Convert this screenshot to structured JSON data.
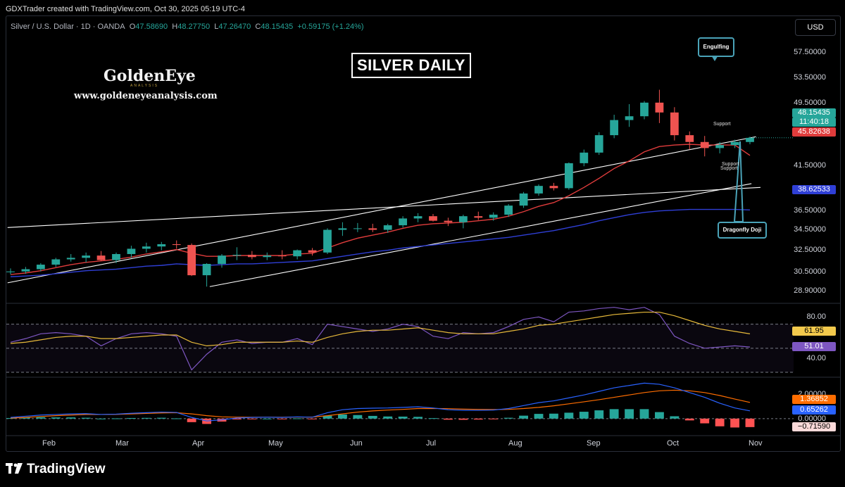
{
  "header": {
    "credit": "GDXTrader created with TradingView.com, Oct 30, 2025 05:19 UTC-4"
  },
  "legend": {
    "symbol": "Silver / U.S. Dollar · 1D · OANDA",
    "o_label": "O",
    "o": "47.58690",
    "h_label": "H",
    "h": "48.27750",
    "l_label": "L",
    "l": "47.26470",
    "c_label": "C",
    "c": "48.15435",
    "change": "+0.59175 (+1.24%)"
  },
  "currency": "USD",
  "annotations": {
    "title": "SILVER DAILY",
    "brand": "GoldenEye",
    "brand_sub": "ANALYSIS",
    "website": "www.goldeneyeanalysis.com",
    "engulfing": "Engulfing",
    "dragonfly": "Dragonfly Doji",
    "support1": "Support",
    "support2": "Support",
    "support3": "Support"
  },
  "price_axis": [
    "57.50000",
    "53.50000",
    "49.50000",
    "41.50000",
    "36.50000",
    "34.50000",
    "32.50000",
    "30.50000",
    "28.90000"
  ],
  "price_badges": {
    "last": "48.15435",
    "countdown": "11:40:18",
    "ema_fast": "45.82638",
    "ema_slow": "38.62533"
  },
  "rsi_axis": [
    "80.00",
    "40.00"
  ],
  "rsi_badges": {
    "ma": "61.95",
    "rsi": "51.01"
  },
  "macd_axis": [
    "2.00000",
    "0.00000"
  ],
  "macd_badges": {
    "signal": "1.36852",
    "macd": "0.65262",
    "hist": "−0.71590"
  },
  "time_axis": [
    "Feb",
    "Mar",
    "Apr",
    "May",
    "Jun",
    "Jul",
    "Aug",
    "Sep",
    "Oct",
    "Nov"
  ],
  "footer": {
    "brand": "TradingView"
  },
  "colors": {
    "up": "#26a69a",
    "down": "#ef5350",
    "ema_fast": "#e03c3c",
    "ema_slow": "#2f3fd6",
    "rsi": "#7e57c2",
    "rsi_ma": "#e6b93a",
    "macd": "#2962ff",
    "signal": "#ff6d00",
    "callout": "#4aa3b8"
  },
  "chart_data": [
    {
      "type": "candlestick",
      "title": "SILVER DAILY",
      "symbol": "Silver / U.S. Dollar",
      "interval": "1D",
      "ylim": [
        27.5,
        60.5
      ],
      "x": [
        "Jan 14",
        "Jan 21",
        "Jan 28",
        "Feb 4",
        "Feb 11",
        "Feb 18",
        "Feb 25",
        "Mar 4",
        "Mar 11",
        "Mar 18",
        "Mar 25",
        "Apr 1",
        "Apr 4",
        "Apr 8",
        "Apr 15",
        "Apr 22",
        "Apr 29",
        "May 6",
        "May 13",
        "May 20",
        "May 27",
        "Jun 3",
        "Jun 10",
        "Jun 17",
        "Jun 24",
        "Jul 1",
        "Jul 8",
        "Jul 15",
        "Jul 22",
        "Jul 29",
        "Aug 5",
        "Aug 12",
        "Aug 19",
        "Aug 26",
        "Sep 2",
        "Sep 9",
        "Sep 16",
        "Sep 23",
        "Sep 30",
        "Oct 7",
        "Oct 10",
        "Oct 14",
        "Oct 16",
        "Oct 17",
        "Oct 21",
        "Oct 23",
        "Oct 27",
        "Oct 28",
        "Oct 29",
        "Oct 30"
      ],
      "open": [
        30.4,
        30.5,
        30.8,
        31.4,
        32.1,
        32.3,
        32.6,
        32.0,
        32.8,
        33.5,
        33.8,
        34.1,
        34.0,
        30.0,
        31.5,
        32.6,
        32.7,
        32.4,
        32.6,
        32.5,
        33.3,
        33.0,
        36.0,
        36.2,
        36.2,
        36.0,
        36.6,
        37.5,
        37.8,
        37.2,
        37.0,
        37.8,
        37.6,
        38.0,
        39.2,
        40.8,
        41.8,
        41.5,
        44.8,
        46.2,
        48.5,
        50.5,
        51.0,
        52.8,
        51.5,
        48.5,
        47.6,
        46.8,
        47.2,
        47.6
      ],
      "high": [
        30.9,
        31.1,
        31.6,
        32.3,
        32.8,
        33.0,
        33.2,
        33.0,
        33.9,
        34.3,
        34.4,
        34.6,
        34.2,
        31.6,
        32.8,
        33.7,
        33.2,
        33.0,
        33.3,
        33.4,
        33.6,
        36.2,
        37.0,
        36.9,
        36.8,
        36.8,
        37.8,
        38.2,
        38.1,
        37.6,
        38.0,
        38.4,
        38.3,
        39.4,
        41.0,
        42.0,
        42.2,
        44.9,
        46.6,
        48.9,
        51.2,
        52.6,
        53.0,
        54.5,
        52.2,
        49.0,
        48.4,
        47.6,
        47.9,
        48.3
      ],
      "low": [
        30.1,
        30.2,
        30.5,
        31.1,
        31.8,
        31.7,
        31.9,
        31.6,
        32.3,
        33.0,
        33.3,
        33.5,
        29.9,
        28.5,
        31.0,
        32.0,
        32.1,
        32.0,
        32.1,
        32.1,
        32.6,
        32.8,
        35.2,
        35.7,
        35.7,
        35.6,
        36.3,
        37.0,
        37.1,
        36.5,
        36.2,
        37.3,
        37.2,
        37.7,
        38.9,
        40.5,
        41.2,
        41.3,
        44.4,
        45.9,
        48.1,
        49.6,
        50.6,
        50.1,
        47.8,
        46.6,
        45.7,
        46.1,
        46.8,
        47.3
      ],
      "close": [
        30.5,
        30.8,
        31.4,
        32.1,
        32.3,
        32.6,
        32.0,
        32.8,
        33.5,
        33.8,
        34.1,
        34.0,
        30.0,
        31.5,
        32.6,
        32.7,
        32.4,
        32.6,
        32.5,
        33.3,
        33.0,
        36.0,
        36.2,
        36.2,
        36.0,
        36.6,
        37.5,
        37.8,
        37.2,
        37.0,
        37.8,
        37.6,
        38.0,
        39.2,
        40.8,
        41.8,
        41.5,
        44.8,
        46.2,
        48.5,
        50.5,
        51.0,
        52.8,
        51.5,
        48.5,
        47.6,
        46.8,
        47.2,
        47.6,
        48.15
      ],
      "ema_fast": [
        30.1,
        30.3,
        30.6,
        31.0,
        31.4,
        31.7,
        31.9,
        32.1,
        32.4,
        32.8,
        33.1,
        33.4,
        32.9,
        32.5,
        32.5,
        32.6,
        32.6,
        32.6,
        32.6,
        32.8,
        32.9,
        33.6,
        34.3,
        34.9,
        35.3,
        35.7,
        36.2,
        36.6,
        36.8,
        36.9,
        37.0,
        37.2,
        37.4,
        37.8,
        38.4,
        39.1,
        39.6,
        40.5,
        41.6,
        42.8,
        44.1,
        45.1,
        46.3,
        47.0,
        47.2,
        47.3,
        47.2,
        47.2,
        47.2,
        45.83
      ],
      "ema_slow": [
        29.8,
        29.9,
        30.0,
        30.2,
        30.4,
        30.6,
        30.7,
        30.8,
        31.0,
        31.2,
        31.3,
        31.5,
        31.4,
        31.3,
        31.4,
        31.5,
        31.5,
        31.6,
        31.7,
        31.8,
        31.9,
        32.2,
        32.5,
        32.8,
        33.1,
        33.3,
        33.6,
        33.8,
        34.0,
        34.2,
        34.4,
        34.6,
        34.8,
        35.0,
        35.3,
        35.6,
        35.9,
        36.3,
        36.7,
        37.2,
        37.6,
        38.0,
        38.3,
        38.5,
        38.6,
        38.7,
        38.7,
        38.7,
        38.7,
        38.63
      ],
      "last": 48.15435
    },
    {
      "type": "line",
      "title": "RSI",
      "ylim": [
        30,
        85
      ],
      "series": [
        {
          "values": [
            55,
            58,
            62,
            63,
            62,
            60,
            52,
            58,
            62,
            63,
            62,
            60,
            32,
            45,
            55,
            57,
            54,
            55,
            55,
            58,
            53,
            70,
            68,
            66,
            64,
            66,
            70,
            68,
            60,
            58,
            63,
            62,
            63,
            68,
            74,
            76,
            72,
            80,
            81,
            83,
            84,
            82,
            84,
            78,
            60,
            54,
            50,
            51,
            52,
            51.01
          ]
        },
        {
          "values": [
            54,
            55,
            57,
            59,
            60,
            60,
            58,
            58,
            59,
            60,
            61,
            61,
            55,
            52,
            53,
            55,
            55,
            55,
            55,
            56,
            55,
            59,
            62,
            64,
            65,
            65,
            66,
            67,
            65,
            63,
            62,
            62,
            62,
            64,
            66,
            69,
            70,
            72,
            74,
            76,
            78,
            79,
            80,
            80,
            77,
            73,
            69,
            66,
            64,
            61.95
          ]
        }
      ]
    },
    {
      "type": "bar",
      "title": "MACD",
      "ylim": [
        -1.2,
        3.2
      ],
      "series": [
        {
          "values": [
            0.1,
            0.2,
            0.3,
            0.35,
            0.4,
            0.42,
            0.35,
            0.38,
            0.45,
            0.5,
            0.55,
            0.52,
            0.1,
            -0.2,
            -0.1,
            0.05,
            0.1,
            0.12,
            0.1,
            0.15,
            0.12,
            0.5,
            0.75,
            0.85,
            0.88,
            0.9,
            0.95,
            1.0,
            0.9,
            0.75,
            0.7,
            0.7,
            0.72,
            0.85,
            1.1,
            1.35,
            1.5,
            1.75,
            2.0,
            2.3,
            2.6,
            2.8,
            3.0,
            2.9,
            2.6,
            2.2,
            1.8,
            1.3,
            0.9,
            0.65262
          ]
        },
        {
          "values": [
            0.05,
            0.1,
            0.18,
            0.25,
            0.3,
            0.35,
            0.35,
            0.36,
            0.4,
            0.44,
            0.48,
            0.5,
            0.4,
            0.25,
            0.15,
            0.12,
            0.12,
            0.12,
            0.12,
            0.13,
            0.13,
            0.25,
            0.4,
            0.55,
            0.65,
            0.72,
            0.78,
            0.85,
            0.86,
            0.84,
            0.8,
            0.78,
            0.76,
            0.78,
            0.85,
            0.95,
            1.08,
            1.25,
            1.42,
            1.6,
            1.8,
            2.0,
            2.2,
            2.35,
            2.4,
            2.35,
            2.2,
            1.95,
            1.65,
            1.36852
          ]
        }
      ],
      "histogram": [
        0.05,
        0.1,
        0.12,
        0.1,
        0.1,
        0.07,
        0,
        0.02,
        0.05,
        0.06,
        0.07,
        0.02,
        -0.3,
        -0.45,
        -0.25,
        -0.07,
        -0.02,
        0,
        -0.02,
        0.02,
        -0.01,
        0.25,
        0.35,
        0.3,
        0.23,
        0.18,
        0.17,
        0.15,
        0.04,
        -0.09,
        -0.1,
        -0.08,
        -0.04,
        0.07,
        0.25,
        0.4,
        0.42,
        0.5,
        0.58,
        0.7,
        0.8,
        0.8,
        0.8,
        0.55,
        0.2,
        -0.15,
        -0.4,
        -0.65,
        -0.75,
        -0.7159
      ]
    }
  ]
}
